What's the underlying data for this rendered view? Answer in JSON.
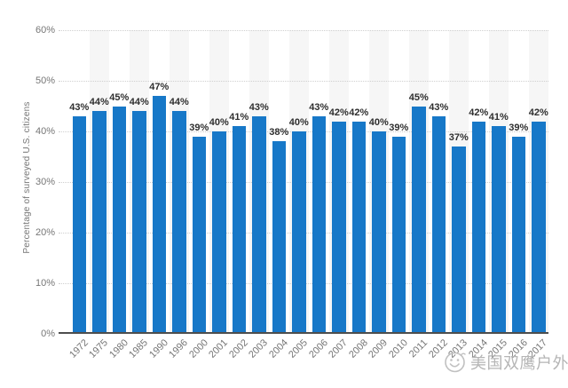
{
  "chart_data": {
    "type": "bar",
    "title": "",
    "xlabel": "",
    "ylabel": "Percentage of surveyed U.S. citizens",
    "categories": [
      "1972",
      "1975",
      "1980",
      "1985",
      "1990",
      "1996",
      "2000",
      "2001",
      "2002",
      "2003",
      "2004",
      "2005",
      "2006",
      "2007",
      "2008",
      "2009",
      "2010",
      "2011",
      "2012",
      "2013",
      "2014",
      "2015",
      "2016",
      "2017"
    ],
    "values": [
      43,
      44,
      45,
      44,
      47,
      44,
      39,
      40,
      41,
      43,
      38,
      40,
      43,
      42,
      42,
      40,
      39,
      45,
      43,
      37,
      42,
      41,
      39,
      42
    ],
    "value_labels": [
      "43%",
      "44%",
      "45%",
      "44%",
      "47%",
      "44%",
      "39%",
      "40%",
      "41%",
      "43%",
      "38%",
      "40%",
      "43%",
      "42%",
      "42%",
      "40%",
      "39%",
      "45%",
      "43%",
      "37%",
      "42%",
      "41%",
      "39%",
      "42%"
    ],
    "y_ticks": [
      "0%",
      "10%",
      "20%",
      "30%",
      "40%",
      "50%",
      "60%"
    ],
    "ylim": [
      0,
      60
    ],
    "grid": "horizontal-dotted",
    "legend_position": "none",
    "colors": {
      "bar": "#1778c8",
      "category_band": "#f6f6f6",
      "gridline": "#cfcfcf",
      "axis_line": "#4d4d4d",
      "value_label": "#2e2e2e",
      "tick_label": "#767676",
      "watermark": "#b5b5b5"
    }
  },
  "watermark": {
    "text": "美国双鹰户外",
    "icon": "smiley-face-icon"
  }
}
